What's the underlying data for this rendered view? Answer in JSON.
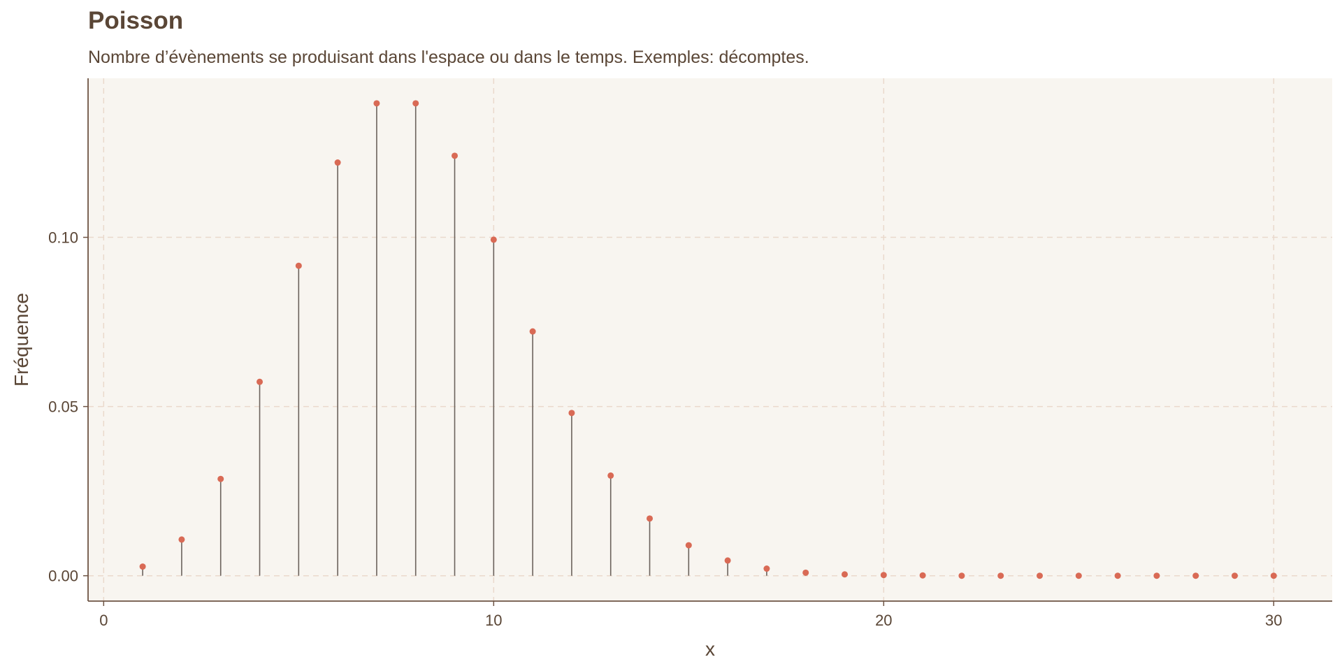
{
  "chart_data": {
    "type": "lollipop",
    "title": "Poisson",
    "subtitle": "Nombre d’évènements se produisant dans l'espace ou dans le temps. Exemples: décomptes.",
    "xlabel": "x",
    "ylabel": "Fréquence",
    "xlim": [
      -0.4,
      31.5
    ],
    "ylim": [
      -0.0075,
      0.147
    ],
    "x_ticks": [
      0,
      10,
      20,
      30
    ],
    "y_ticks": [
      0.0,
      0.05,
      0.1
    ],
    "y_tick_labels": [
      "0.00",
      "0.05",
      "0.10"
    ],
    "grid": true,
    "x": [
      1,
      2,
      3,
      4,
      5,
      6,
      7,
      8,
      9,
      10,
      11,
      12,
      13,
      14,
      15,
      16,
      17,
      18,
      19,
      20,
      21,
      22,
      23,
      24,
      25,
      26,
      27,
      28,
      29,
      30
    ],
    "values": [
      0.0027,
      0.0107,
      0.0286,
      0.0573,
      0.0916,
      0.1221,
      0.1396,
      0.1396,
      0.1241,
      0.0993,
      0.0722,
      0.0481,
      0.0296,
      0.0169,
      0.009,
      0.0045,
      0.0021,
      0.0009,
      0.0004,
      0.0002,
      0.0001,
      0.0,
      0.0,
      0.0,
      0.0,
      0.0,
      0.0,
      0.0,
      0.0,
      0.0
    ],
    "colors": {
      "panel": "#f8f5f0",
      "grid": "#ead9cc",
      "axis": "#6e5444",
      "stem": "#6b625c",
      "point": "#d96a55",
      "text": "#5a4636"
    }
  }
}
